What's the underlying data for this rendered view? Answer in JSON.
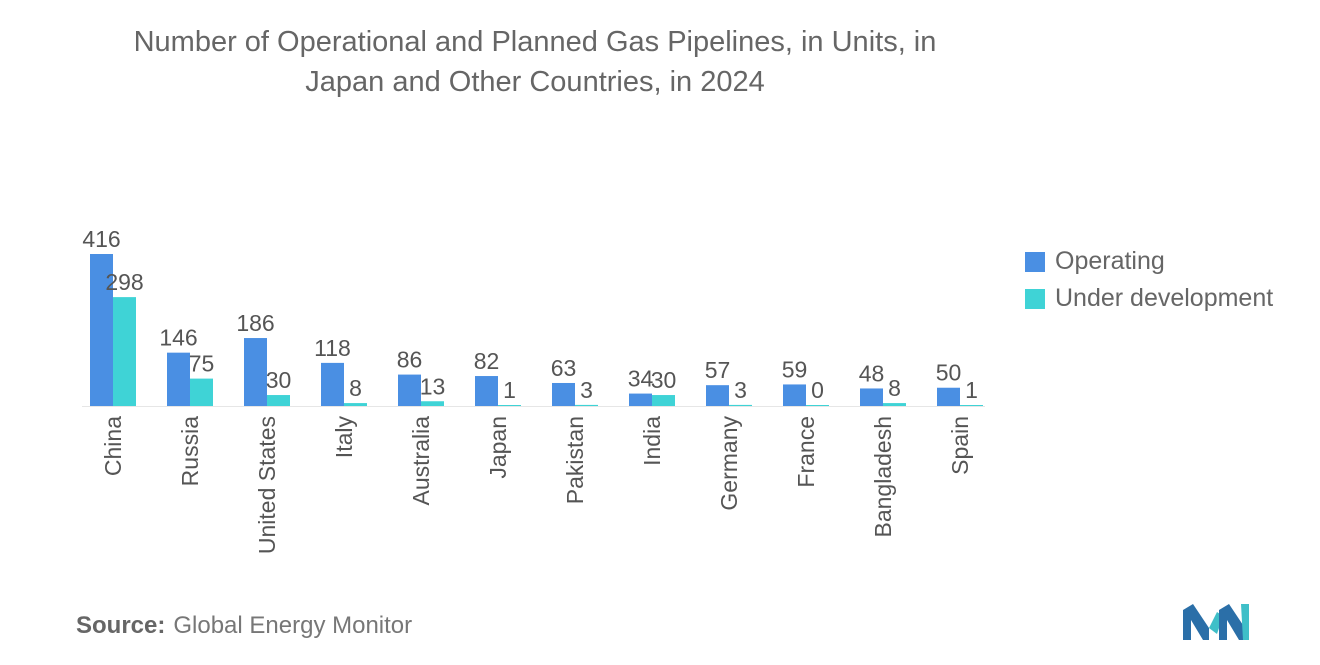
{
  "title_lines": [
    "Number of Operational and Planned Gas Pipelines, in Units, in",
    "Japan and Other Countries, in 2024"
  ],
  "legend": [
    {
      "label": "Operating",
      "color": "#4a8fe3"
    },
    {
      "label": "Under development",
      "color": "#3fd3d6"
    }
  ],
  "source": {
    "label": "Source:",
    "value": "Global Energy Monitor"
  },
  "logo": {
    "name": "mordor-intelligence-logo"
  },
  "chart_data": {
    "type": "bar",
    "title": "Number of Operational and Planned Gas Pipelines, in Units, in Japan and Other Countries, in 2024",
    "xlabel": "",
    "ylabel": "",
    "ylim": [
      0,
      416
    ],
    "categories": [
      "China",
      "Russia",
      "United States",
      "Italy",
      "Australia",
      "Japan",
      "Pakistan",
      "India",
      "Germany",
      "France",
      "Bangladesh",
      "Spain"
    ],
    "series": [
      {
        "name": "Operating",
        "color": "#4a8fe3",
        "values": [
          416,
          146,
          186,
          118,
          86,
          82,
          63,
          34,
          57,
          59,
          48,
          50
        ]
      },
      {
        "name": "Under development",
        "color": "#3fd3d6",
        "values": [
          298,
          75,
          30,
          8,
          13,
          1,
          3,
          30,
          3,
          0,
          8,
          1
        ]
      }
    ]
  }
}
